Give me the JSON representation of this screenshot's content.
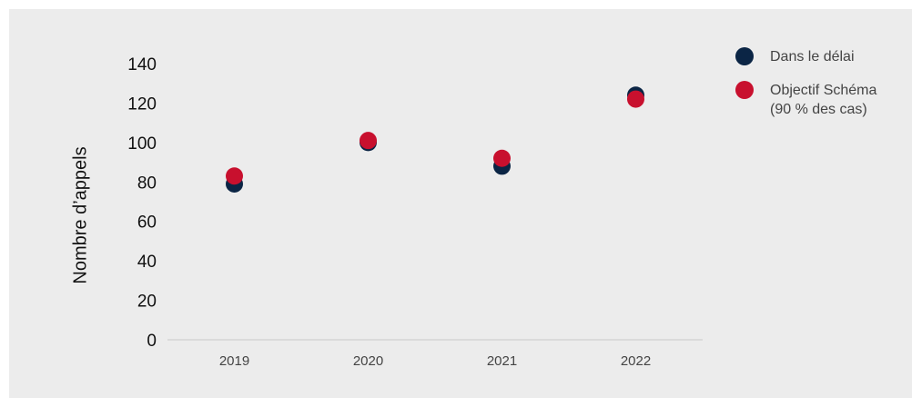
{
  "chart_data": {
    "type": "scatter",
    "title": "",
    "xlabel": "",
    "ylabel": "Nombre d’appels",
    "categories": [
      "2019",
      "2020",
      "2021",
      "2022"
    ],
    "ylim": [
      0,
      140
    ],
    "yticks": [
      "0",
      "20",
      "40",
      "60",
      "80",
      "100",
      "120",
      "140"
    ],
    "grid": false,
    "legend_position": "right",
    "series": [
      {
        "name": "Dans le délai",
        "color": "#0b2545",
        "values": [
          79,
          100,
          88,
          124
        ]
      },
      {
        "name": "Objectif Schéma\n(90 % des cas)",
        "color": "#c8102e",
        "values": [
          83,
          101,
          92,
          122
        ]
      }
    ]
  }
}
